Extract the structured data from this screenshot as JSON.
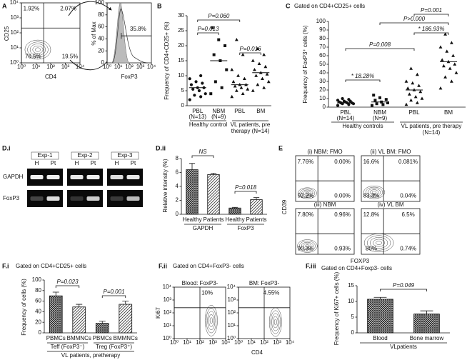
{
  "chart_data": [
    {
      "panel": "A",
      "type": "flow",
      "xlabel": "CD4",
      "ylabel": "CD25",
      "log": true,
      "xlim": [
        1,
        10000
      ],
      "ylim": [
        1,
        10000
      ],
      "xticks": [
        {
          "value": 1,
          "label": "10⁰"
        },
        {
          "value": 10,
          "label": "10¹"
        },
        {
          "value": 100,
          "label": "10²"
        },
        {
          "value": 1000,
          "label": "10³"
        },
        {
          "value": 10000,
          "label": "10⁴"
        }
      ],
      "yticks": [
        {
          "value": 1,
          "label": "10⁰"
        },
        {
          "value": 10,
          "label": "10¹"
        },
        {
          "value": 100,
          "label": "10²"
        },
        {
          "value": 1000,
          "label": "10³"
        },
        {
          "value": 10000,
          "label": "10⁴"
        }
      ],
      "panels": [
        {
          "values": [
            1.92,
            2.07,
            76.5,
            19.5
          ],
          "value_labels": [
            "1.92%",
            "2.07%",
            "76.5%",
            "19.5%"
          ]
        }
      ]
    },
    {
      "type": "histogram",
      "xlabel": "FoxP3",
      "ylabel": "% of Max",
      "log": true,
      "xlim": [
        1,
        10000
      ],
      "ylim": [
        0,
        100
      ],
      "xticks": [
        {
          "value": 1,
          "label": "10⁰"
        },
        {
          "value": 10,
          "label": "10¹"
        },
        {
          "value": 100,
          "label": "10²"
        },
        {
          "value": 1000,
          "label": "10³"
        },
        {
          "value": 10000,
          "label": "10⁴"
        }
      ],
      "yticks": [
        0,
        20,
        40,
        60,
        80,
        100
      ],
      "values": [
        35.8
      ],
      "value_labels": [
        "35.8%"
      ]
    },
    {
      "panel": "B",
      "type": "scatter",
      "ylabel": "Frequency of CD4+CD25+ (%)",
      "ylim": [
        0,
        30
      ],
      "yticks": [
        0,
        5,
        10,
        15,
        20,
        25,
        30
      ],
      "categories": [
        "PBL",
        "NBM",
        "PBL",
        "BM"
      ],
      "category_counts": [
        "(N=13)",
        "(N=9)",
        null,
        null
      ],
      "group_labels": [
        "Healthy control",
        "VL patients, pre therapy (N=14)"
      ],
      "markers": [
        "circle",
        "square",
        "triangle",
        "triangle"
      ],
      "values": [
        [
          2,
          3,
          3.5,
          4,
          5,
          5.5,
          6,
          6,
          7,
          7.5,
          8,
          9,
          10
        ],
        [
          4,
          6,
          8,
          12,
          15,
          17,
          20,
          22,
          26
        ],
        [
          3,
          4,
          5,
          5.5,
          6,
          6.5,
          7,
          7,
          8,
          9,
          10,
          12,
          17,
          22
        ],
        [
          5,
          6,
          7,
          8,
          9,
          10,
          10.5,
          11,
          12,
          13,
          14,
          15,
          17,
          19
        ]
      ],
      "medians": [
        6,
        15,
        7,
        11
      ],
      "annotations": [
        "P=0.060",
        "P=0.013",
        "P=0.016"
      ]
    },
    {
      "panel": "C",
      "type": "scatter",
      "title": "Gated on CD4+CD25+ cells",
      "ylabel": "Frequency of FoxP3⁺ cells (%)",
      "ylim": [
        0,
        100
      ],
      "yticks": [
        0,
        10,
        20,
        30,
        40,
        50,
        60,
        70,
        80,
        90,
        100
      ],
      "categories": [
        "PBL",
        "NBM",
        "PBL",
        "BM"
      ],
      "category_counts": [
        "(N=14)",
        "(N=9)",
        null,
        null
      ],
      "group_labels": [
        "Healthy controls",
        "VL patients, pre therapy (N=14)"
      ],
      "markers": [
        "circle",
        "square",
        "triangle",
        "triangle"
      ],
      "values": [
        [
          2,
          3,
          4,
          4,
          5,
          5,
          5,
          6,
          6,
          7,
          7,
          8,
          9,
          10
        ],
        [
          2,
          3,
          4,
          5,
          6,
          8,
          9,
          11,
          14
        ],
        [
          3,
          5,
          8,
          10,
          12,
          15,
          18,
          20,
          22,
          25,
          28,
          30,
          38,
          45
        ],
        [
          22,
          30,
          35,
          40,
          45,
          48,
          50,
          53,
          55,
          60,
          65,
          70,
          75,
          85
        ]
      ],
      "medians": [
        5,
        6,
        20,
        53
      ],
      "annotations": [
        "P=0.001",
        "P>0.000",
        "* 186.93%",
        "P=0.008",
        "* 18.28%"
      ]
    },
    {
      "panel": "D.i",
      "type": "gel",
      "experiments": [
        "Exp-1",
        "Exp-2",
        "Exp-3"
      ],
      "lanes": [
        "H",
        "Pt"
      ],
      "rows": [
        "GAPDH",
        "FoxP3"
      ]
    },
    {
      "panel": "D.ii",
      "type": "bar",
      "ylabel": "Relative intensity (%)",
      "ylim": [
        0,
        8
      ],
      "yticks": [
        0,
        2,
        4,
        6,
        8
      ],
      "categories": [
        "Healthy",
        "Patients",
        "Healthy",
        "Patients"
      ],
      "values": [
        6.4,
        5.7,
        0.9,
        2.1
      ],
      "errors": [
        0.9,
        0.2,
        0.1,
        0.3
      ],
      "fills": [
        "cross",
        "diag",
        "cross",
        "diag"
      ],
      "group_labels": [
        "GAPDH",
        "FoxP3"
      ],
      "annotations": [
        "NS",
        "P=0.018"
      ]
    },
    {
      "panel": "E",
      "type": "flow",
      "xlabel": "FOXP3",
      "ylabel": "CD39",
      "panels": [
        {
          "title": "(i) NBM: FMO",
          "values": [
            7.76,
            0,
            92.2,
            0
          ],
          "value_labels": [
            "7.76%",
            "0.00%",
            "92.2%",
            "0.00%"
          ]
        },
        {
          "title": "(ii) VL BM: FMO",
          "values": [
            16.6,
            0.081,
            83.3,
            0.04
          ],
          "value_labels": [
            "16.6%",
            "0.081%",
            "83.3%",
            "0.04%"
          ]
        },
        {
          "title": "(iii) NBM",
          "values": [
            7.8,
            0.96,
            90.3,
            0.93
          ],
          "value_labels": [
            "7.80%",
            "0.96%",
            "90.3%",
            "0.93%"
          ]
        },
        {
          "title": "(iv) VL BM",
          "values": [
            12.8,
            6.5,
            80,
            0.74
          ],
          "value_labels": [
            "12.8%",
            "6.5%",
            "80%",
            "0.74%"
          ]
        }
      ]
    },
    {
      "panel": "F.i",
      "type": "bar",
      "title": "Gated on CD4+CD25+ cells",
      "ylabel": "Frequency of cells (%)",
      "ylim": [
        0,
        100
      ],
      "yticks": [
        0,
        20,
        40,
        60,
        80,
        100
      ],
      "categories": [
        "PBMCs",
        "BMMNCs",
        "PBMCs",
        "BMMNCs"
      ],
      "values": [
        70,
        49,
        18,
        54
      ],
      "errors": [
        7,
        5,
        4,
        6
      ],
      "fills": [
        "cross",
        "diag",
        "cross",
        "diag"
      ],
      "group_labels": [
        "Teff (FoxP3⁻)",
        "Treg (FoxP3⁺)"
      ],
      "footer": "VL patients, pretherapy",
      "annotations": [
        "P=0.023",
        "P=0.001"
      ]
    },
    {
      "panel": "F.ii",
      "type": "flow",
      "title": "Gated on CD4+FoxP3- cells",
      "xlabel": "CD4",
      "ylabel": "Ki67",
      "log": true,
      "xlim": [
        1,
        10000
      ],
      "ylim": [
        1,
        10000
      ],
      "xticks": [
        {
          "value": 1,
          "label": "10⁰"
        },
        {
          "value": 10,
          "label": "10¹"
        },
        {
          "value": 100,
          "label": "10²"
        },
        {
          "value": 1000,
          "label": "10³"
        },
        {
          "value": 10000,
          "label": "10⁴"
        }
      ],
      "yticks": [
        {
          "value": 1,
          "label": "10⁰"
        },
        {
          "value": 10,
          "label": "10¹"
        },
        {
          "value": 100,
          "label": "10²"
        },
        {
          "value": 1000,
          "label": "10³"
        },
        {
          "value": 10000,
          "label": "10⁴"
        }
      ],
      "panels": [
        {
          "title": "Blood: FoxP3-",
          "values": [
            10
          ],
          "value_labels": [
            "10%"
          ]
        },
        {
          "title": "BM: FoxP3-",
          "values": [
            4.55
          ],
          "value_labels": [
            "4.55%"
          ]
        }
      ]
    },
    {
      "panel": "F.iii",
      "type": "bar",
      "title": "Gated on CD4+Foxp3- cells",
      "ylabel": "Frequency of Ki67+ cells (%)",
      "ylim": [
        0,
        15
      ],
      "yticks": [
        0,
        5,
        10,
        15
      ],
      "categories": [
        "Blood",
        "Bone marrow"
      ],
      "values": [
        10.7,
        6.0
      ],
      "errors": [
        0.6,
        1.0
      ],
      "fills": [
        "cross",
        "cross"
      ],
      "footer": "VLpatients",
      "annotations": [
        "P=0.049"
      ]
    }
  ]
}
